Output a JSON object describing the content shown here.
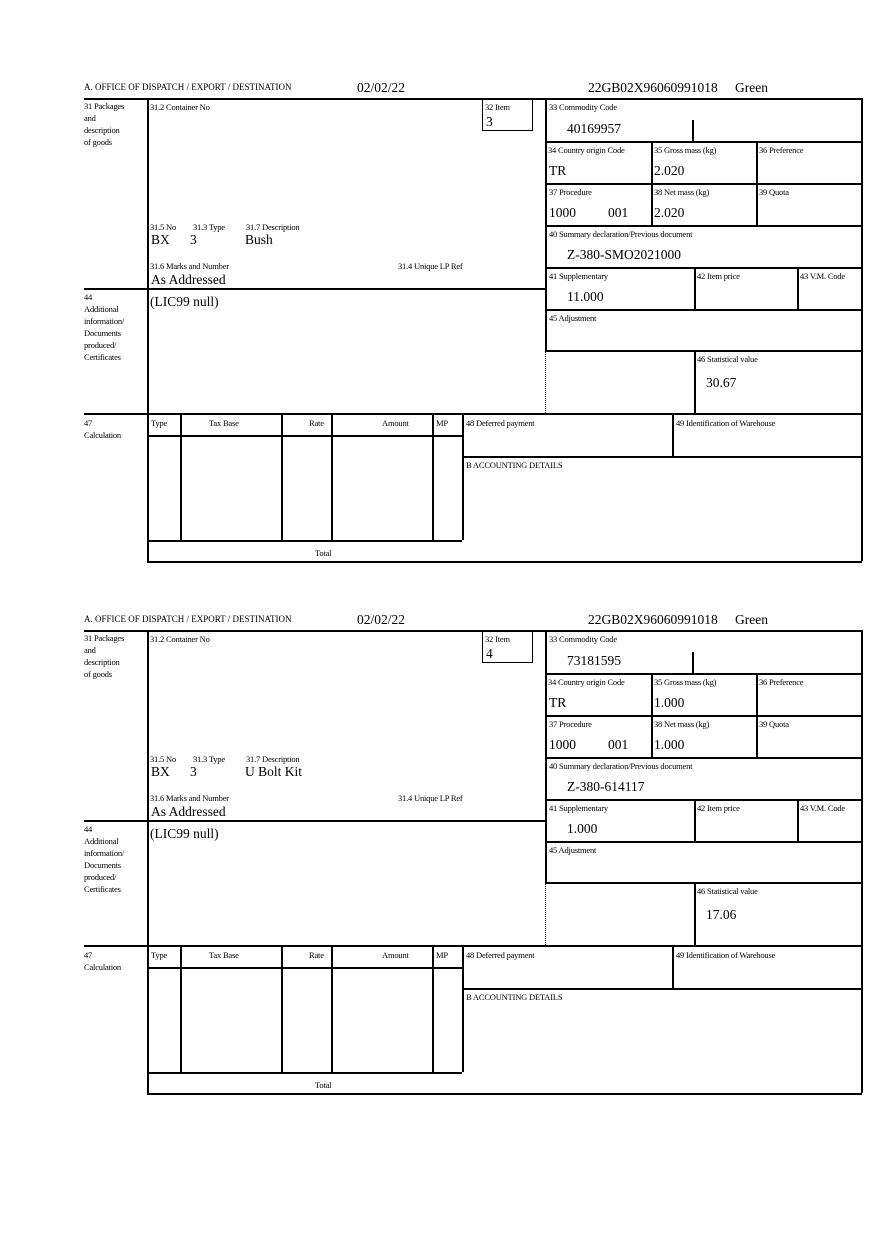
{
  "labels": {
    "office": "A. OFFICE OF DISPATCH / EXPORT / DESTINATION",
    "l31": [
      "31 Packages",
      "and",
      "description",
      "of goods"
    ],
    "l31_2": "31.2 Container No",
    "l32": "32 Item",
    "l33": "33 Commodity Code",
    "l34": "34 Country origin Code",
    "l35": "35 Gross mass (kg)",
    "l36": "36 Preference",
    "l37": "37 Procedure",
    "l38": "38 Net mass (kg)",
    "l39": "39 Quota",
    "l40": "40 Summary declaration/Previous document",
    "l41": "41 Supplementary",
    "l42": "42 Item price",
    "l43": "43 V.M. Code",
    "l45": "45 Adjustment",
    "l46": "46 Statistical value",
    "l31_5": "31.5 No",
    "l31_3": "31.3 Type",
    "l31_7": "31.7 Description",
    "l31_6": "31.6 Marks and Number",
    "l31_4": "31.4 Unique LP Ref",
    "l44": [
      "44",
      "Additional",
      "information/",
      "Documents",
      "produced/",
      "Certificates"
    ],
    "l47": [
      "47",
      "Calculation"
    ],
    "calc_headers": [
      "Type",
      "Tax Base",
      "Rate",
      "Amount",
      "MP"
    ],
    "total": "Total",
    "l48": "48 Deferred payment",
    "l49": "49 Identification of Warehouse",
    "accounting": "B ACCOUNTING DETAILS"
  },
  "forms": [
    {
      "date": "02/02/22",
      "reference": "22GB02X96060991018",
      "route": "Green",
      "item": "3",
      "commodity_code": "40169957",
      "country_origin": "TR",
      "gross_mass": "2.020",
      "procedure_code": "1000",
      "procedure_sub": "001",
      "net_mass": "2.020",
      "previous_document": "Z-380-SMO2021000",
      "supplementary": "11.000",
      "statistical_value": "30.67",
      "package_no": "BX",
      "package_type": "3",
      "description": "Bush",
      "marks": "As Addressed",
      "additional_info": "(LIC99 null)"
    },
    {
      "date": "02/02/22",
      "reference": "22GB02X96060991018",
      "route": "Green",
      "item": "4",
      "commodity_code": "73181595",
      "country_origin": "TR",
      "gross_mass": "1.000",
      "procedure_code": "1000",
      "procedure_sub": "001",
      "net_mass": "1.000",
      "previous_document": "Z-380-614117",
      "supplementary": "1.000",
      "statistical_value": "17.06",
      "package_no": "BX",
      "package_type": "3",
      "description": "U Bolt Kit",
      "marks": "As Addressed",
      "additional_info": "(LIC99 null)"
    }
  ]
}
